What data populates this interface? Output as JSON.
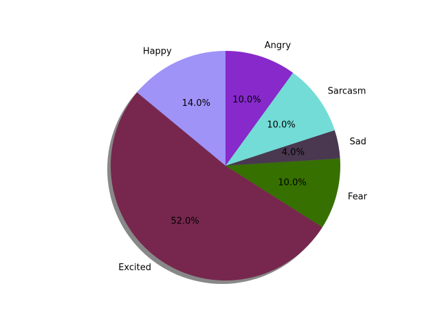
{
  "chart_data": {
    "type": "pie",
    "title": "",
    "categories": [
      "Happy",
      "Excited",
      "Fear",
      "Sad",
      "Sarcasm",
      "Angry"
    ],
    "values": [
      14.0,
      52.0,
      10.0,
      4.0,
      10.0,
      10.0
    ],
    "percent_labels": [
      "14.0%",
      "52.0%",
      "10.0%",
      "4.0%",
      "10.0%",
      "10.0%"
    ],
    "colors": [
      "#9f93f8",
      "#77274d",
      "#367000",
      "#493850",
      "#73dcd6",
      "#8729cb"
    ],
    "start_angle_deg": 90,
    "direction": "counterclockwise",
    "shadow": true,
    "shadow_color": "#555555",
    "legend": "none"
  }
}
